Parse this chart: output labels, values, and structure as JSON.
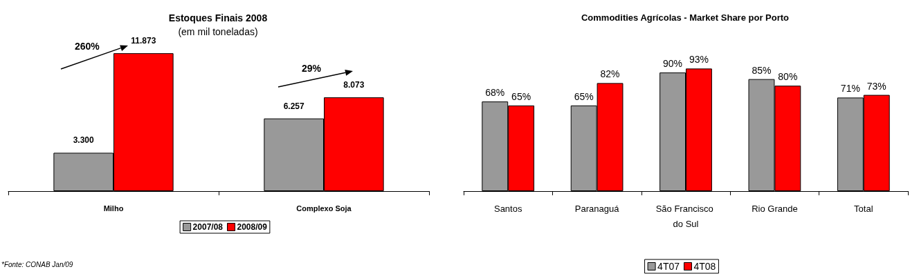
{
  "chart_data": [
    {
      "type": "bar",
      "title": "Estoques Finais 2008",
      "subtitle": "(em mil toneladas)",
      "categories": [
        "Milho",
        "Complexo Soja"
      ],
      "series": [
        {
          "name": "2007/08",
          "color": "#999999",
          "values": [
            3300,
            6257
          ],
          "value_labels": [
            "3.300",
            "6.257"
          ]
        },
        {
          "name": "2008/09",
          "color": "#ff0000",
          "values": [
            11873,
            8073
          ],
          "value_labels": [
            "11.873",
            "8.073"
          ]
        }
      ],
      "legend": "bottom",
      "annotations": [
        "260%",
        "29%",
        "*Fonte: CONAB Jan/09"
      ]
    },
    {
      "type": "bar",
      "title": "Commodities Agrícolas - Market Share por Porto",
      "categories": [
        "Santos",
        "Paranaguá",
        "São Francisco do Sul",
        "Rio Grande",
        "Total"
      ],
      "series": [
        {
          "name": "4T07",
          "color": "#999999",
          "values": [
            68,
            65,
            90,
            85,
            71
          ],
          "value_labels": [
            "68%",
            "65%",
            "90%",
            "85%",
            "71%"
          ]
        },
        {
          "name": "4T08",
          "color": "#ff0000",
          "values": [
            65,
            82,
            93,
            80,
            73
          ],
          "value_labels": [
            "65%",
            "82%",
            "93%",
            "80%",
            "73%"
          ]
        }
      ],
      "legend": "bottom"
    }
  ]
}
